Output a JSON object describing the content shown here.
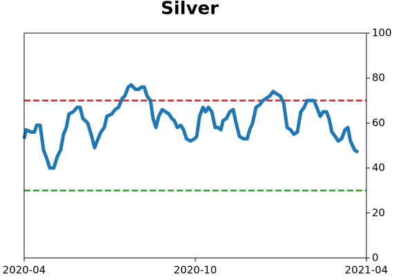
{
  "chart_data": {
    "type": "line",
    "title": "Silver",
    "x": [
      0,
      0.07,
      0.24,
      0.36,
      0.44,
      0.56,
      0.68,
      0.8,
      0.9,
      1.04,
      1.16,
      1.28,
      1.38,
      1.48,
      1.57,
      1.72,
      1.86,
      1.96,
      2.06,
      2.23,
      2.37,
      2.47,
      2.56,
      2.69,
      2.81,
      2.9,
      3.07,
      3.19,
      3.31,
      3.44,
      3.53,
      3.65,
      3.75,
      3.9,
      4.02,
      4.11,
      4.21,
      4.31,
      4.43,
      4.52,
      4.62,
      4.72,
      4.84,
      4.96,
      5.08,
      5.18,
      5.27,
      5.37,
      5.49,
      5.59,
      5.69,
      5.83,
      5.98,
      6.05,
      6.15,
      6.27,
      6.36,
      6.46,
      6.58,
      6.7,
      6.8,
      6.9,
      6.97,
      7.09,
      7.21,
      7.33,
      7.43,
      7.55,
      7.69,
      7.82,
      7.91,
      8.01,
      8.13,
      8.25,
      8.37,
      8.49,
      8.61,
      8.73,
      8.85,
      8.98,
      9.1,
      9.22,
      9.34,
      9.46,
      9.58,
      9.7,
      9.82,
      9.92,
      10.04,
      10.16,
      10.26,
      10.38,
      10.48,
      10.6,
      10.69,
      10.79,
      10.91,
      11.01,
      11.13,
      11.25,
      11.35,
      11.44,
      11.59,
      11.71
    ],
    "series": [
      {
        "name": "Silver",
        "color": "#1f77b4",
        "values": [
          53,
          57,
          56,
          56,
          59,
          59,
          48,
          44,
          40,
          40,
          45,
          48,
          55,
          58,
          64,
          65,
          67,
          67,
          62,
          60,
          54,
          49,
          52,
          56,
          58,
          63,
          64,
          66,
          67,
          71,
          72,
          76,
          77,
          75,
          75,
          76,
          76,
          72,
          70,
          62,
          58,
          63,
          66,
          65,
          64,
          62,
          61,
          58,
          59,
          57,
          53,
          52,
          53,
          54,
          63,
          67,
          65,
          67,
          65,
          58,
          58,
          57,
          61,
          62,
          65,
          66,
          60,
          54,
          53,
          53,
          57,
          60,
          67,
          68,
          70,
          71,
          72,
          74,
          73,
          72,
          69,
          58,
          57,
          55,
          56,
          65,
          67,
          70,
          70,
          70,
          67,
          63,
          65,
          65,
          62,
          56,
          54,
          52,
          53,
          57,
          58,
          52,
          48,
          47
        ]
      }
    ],
    "hlines": [
      {
        "value": 70,
        "color": "#d62728"
      },
      {
        "value": 30,
        "color": "#2ca02c"
      }
    ],
    "xlim": [
      0,
      12
    ],
    "xticks": [
      {
        "value": 0,
        "label": "2020-04"
      },
      {
        "value": 6,
        "label": "2020-10"
      },
      {
        "value": 12,
        "label": "2021-04"
      }
    ],
    "ylim": [
      0,
      100
    ],
    "yticks": [
      0,
      20,
      40,
      60,
      80,
      100
    ]
  }
}
